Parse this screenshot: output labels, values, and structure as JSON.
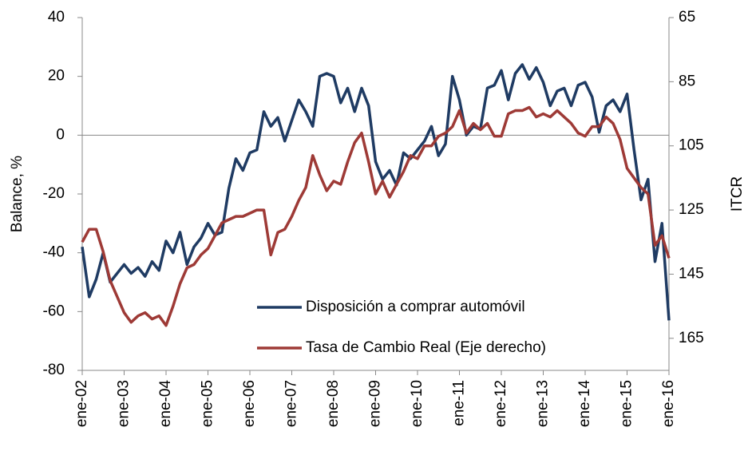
{
  "chart_data": {
    "type": "line",
    "categories": [
      "ene-02",
      null,
      null,
      null,
      null,
      null,
      "ene-03",
      null,
      null,
      null,
      null,
      null,
      "ene-04",
      null,
      null,
      null,
      null,
      null,
      "ene-05",
      null,
      null,
      null,
      null,
      null,
      "ene-06",
      null,
      null,
      null,
      null,
      null,
      "ene-07",
      null,
      null,
      null,
      null,
      null,
      "ene-08",
      null,
      null,
      null,
      null,
      null,
      "ene-09",
      null,
      null,
      null,
      null,
      null,
      "ene-10",
      null,
      null,
      null,
      null,
      null,
      "ene-11",
      null,
      null,
      null,
      null,
      null,
      "ene-12",
      null,
      null,
      null,
      null,
      null,
      "ene-13",
      null,
      null,
      null,
      null,
      null,
      "ene-14",
      null,
      null,
      null,
      null,
      null,
      "ene-15",
      null,
      null,
      null,
      null,
      null,
      "ene-16"
    ],
    "series": [
      {
        "name": "Disposición a comprar automóvil",
        "color": "#1f3b63",
        "axis": "y",
        "values": [
          -38,
          -55,
          -49,
          -40,
          -50,
          -47,
          -44,
          -47,
          -45,
          -48,
          -43,
          -46,
          -36,
          -40,
          -33,
          -44,
          -38,
          -35,
          -30,
          -34,
          -33,
          -18,
          -8,
          -12,
          -6,
          -5,
          8,
          3,
          6,
          -2,
          5,
          12,
          8,
          3,
          20,
          21,
          20,
          11,
          16,
          8,
          16,
          10,
          -9,
          -15,
          -12,
          -17,
          -6,
          -8,
          -5,
          -2,
          3,
          -7,
          -3,
          20,
          12,
          0,
          3,
          2,
          16,
          17,
          22,
          12,
          21,
          24,
          19,
          23,
          18,
          10,
          15,
          16,
          10,
          17,
          18,
          13,
          1,
          10,
          12,
          8,
          14,
          -5,
          -22,
          -15,
          -43,
          -30,
          -63
        ]
      },
      {
        "name": "Tasa de Cambio Real (Eje derecho)",
        "color": "#9e3a36",
        "axis": "y2",
        "values": [
          135,
          131,
          131,
          138,
          147,
          152,
          157,
          160,
          158,
          157,
          159,
          158,
          161,
          155,
          148,
          143,
          142,
          139,
          137,
          133,
          129,
          128,
          127,
          127,
          126,
          125,
          125,
          139,
          132,
          131,
          127,
          122,
          118,
          108,
          114,
          119,
          116,
          117,
          110,
          104,
          101,
          110,
          120,
          116,
          121,
          117,
          113,
          108,
          109,
          105,
          105,
          102,
          101,
          99,
          94,
          101,
          98,
          100,
          98,
          102,
          102,
          95,
          94,
          94,
          93,
          96,
          95,
          96,
          94,
          96,
          98,
          101,
          102,
          99,
          99,
          96,
          98,
          103,
          112,
          115,
          118,
          120,
          136,
          133,
          140
        ]
      }
    ],
    "ylabel": "Balance, %",
    "y2label": "ITCR",
    "ylim": [
      -80,
      40
    ],
    "yticks": [
      -80,
      -60,
      -40,
      -20,
      0,
      20,
      40
    ],
    "y2lim": [
      65,
      175
    ],
    "y2ticks": [
      65,
      85,
      105,
      125,
      145,
      165
    ],
    "y2_reversed": true,
    "zero_line": true,
    "legend": "bottom"
  }
}
